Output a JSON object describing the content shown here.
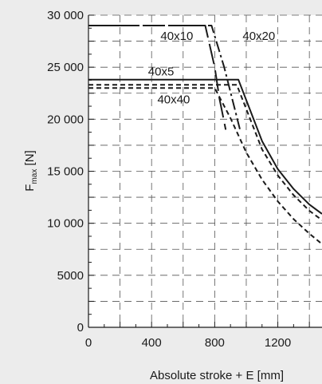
{
  "chart_data": {
    "type": "line",
    "xlabel": "Absolute stroke + E [mm]",
    "ylabel": "F",
    "ylabel_sub": "max",
    "ylabel_unit": " [N]",
    "xlim": [
      0,
      1480
    ],
    "ylim": [
      0,
      30000
    ],
    "xticks": [
      0,
      400,
      800,
      1200
    ],
    "xtick_labels": [
      "0",
      "400",
      "800",
      "1200"
    ],
    "yticks": [
      0,
      5000,
      10000,
      15000,
      20000,
      25000,
      30000
    ],
    "ytick_labels": [
      "0",
      "5000",
      "10 000",
      "15 000",
      "20 000",
      "25 000",
      "30 000"
    ],
    "grid": true,
    "series": [
      {
        "name": "40x10",
        "style": "long-dash",
        "x": [
          0,
          740,
          800,
          830,
          870
        ],
        "y": [
          29000,
          29000,
          25000,
          22000,
          19000
        ]
      },
      {
        "name": "40x20",
        "style": "dash-dot",
        "x": [
          0,
          780,
          860,
          910,
          960
        ],
        "y": [
          29000,
          29000,
          25000,
          22000,
          19000
        ]
      },
      {
        "name": "40x5",
        "style": "solid",
        "x": [
          0,
          950,
          1100,
          1200,
          1300,
          1400,
          1480
        ],
        "y": [
          23800,
          23800,
          17900,
          15200,
          13300,
          11800,
          10900
        ]
      },
      {
        "name": "40x40",
        "style": "short-dash",
        "x": [
          0,
          800,
          900,
          1000,
          1100,
          1200,
          1300,
          1400,
          1480
        ],
        "y": [
          23000,
          23000,
          20100,
          16800,
          14200,
          12100,
          10400,
          9000,
          8000
        ]
      },
      {
        "name": "",
        "style": "short-dash",
        "x": [
          0,
          940,
          1100,
          1200,
          1300,
          1400,
          1480
        ],
        "y": [
          23300,
          23300,
          17100,
          14600,
          12700,
          11200,
          10300
        ]
      }
    ],
    "annotations": [
      {
        "text": "40x10",
        "x": 560,
        "y": 28000
      },
      {
        "text": "40x20",
        "x": 1080,
        "y": 28000
      },
      {
        "text": "40x5",
        "x": 460,
        "y": 24600
      },
      {
        "text": "40x40",
        "x": 540,
        "y": 21900
      }
    ],
    "colors": {
      "background": "#ececec",
      "plot_background": "#ffffff",
      "line": "#1a1a1a",
      "grid": "#555555"
    }
  }
}
